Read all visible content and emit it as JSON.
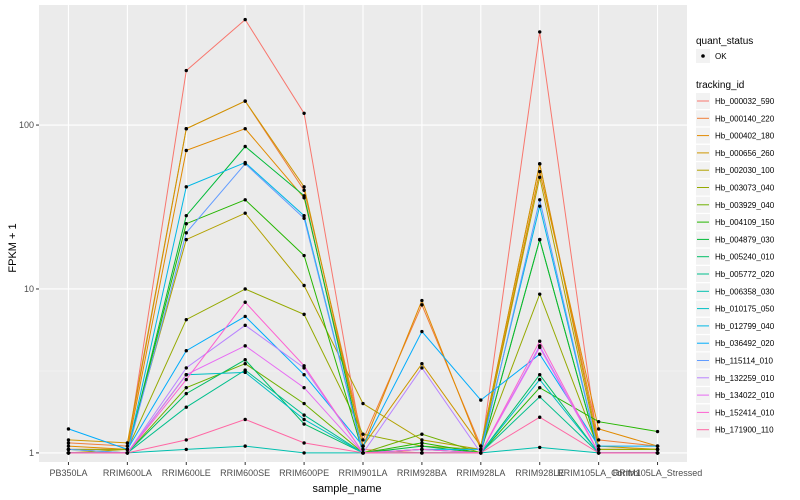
{
  "chart_data": {
    "type": "line",
    "xlabel": "sample_name",
    "ylabel": "FPKM + 1",
    "y_scale": "log10",
    "ylim": [
      0.88,
      540
    ],
    "y_ticks": [
      1,
      10,
      100
    ],
    "y_tick_labels": [
      "1",
      "10",
      "100"
    ],
    "grid": true,
    "categories": [
      "PB350LA",
      "RRIM600LA",
      "RRIM600LE",
      "RRIM600SE",
      "RRIM600PE",
      "RRIM901LA",
      "RRIM928BA",
      "RRIM928LA",
      "RRIM928LE",
      "RRIM105LA_Control",
      "RRIM105LA_Stressed"
    ],
    "legend_quant": {
      "title": "quant_status",
      "items": [
        "OK"
      ]
    },
    "legend_title": "tracking_id",
    "legend_position": "right",
    "series": [
      {
        "name": "Hb_000032_590",
        "color": "#F8766D",
        "values": [
          1.05,
          1.05,
          215,
          440,
          118,
          1.05,
          1.0,
          1.0,
          370,
          1.05,
          1.05
        ]
      },
      {
        "name": "Hb_000140_220",
        "color": "#EF7F3A",
        "values": [
          1.15,
          1.1,
          95,
          140,
          40,
          1.2,
          8.0,
          1.1,
          58,
          1.2,
          1.1
        ]
      },
      {
        "name": "Hb_000402_180",
        "color": "#E18A00",
        "values": [
          1.1,
          1.05,
          70,
          95,
          36,
          1.1,
          8.5,
          1.05,
          52,
          1.4,
          1.1
        ]
      },
      {
        "name": "Hb_000656_260",
        "color": "#CD9600",
        "values": [
          1.2,
          1.15,
          95,
          140,
          42,
          1.1,
          3.5,
          1.1,
          58,
          1.1,
          1.05
        ]
      },
      {
        "name": "Hb_002030_100",
        "color": "#B2A100",
        "values": [
          1.0,
          1.05,
          20,
          29,
          10.5,
          2.0,
          1.2,
          1.05,
          48,
          1.05,
          1.05
        ]
      },
      {
        "name": "Hb_003073_040",
        "color": "#95A900",
        "values": [
          1.05,
          1.05,
          6.5,
          10,
          7.0,
          1.3,
          1.1,
          1.05,
          9.3,
          1.05,
          1.05
        ]
      },
      {
        "name": "Hb_003929_040",
        "color": "#6FB000",
        "values": [
          1.0,
          1.0,
          2.5,
          3.5,
          2.0,
          1.0,
          1.3,
          1.0,
          20,
          1.0,
          1.0
        ]
      },
      {
        "name": "Hb_004109_150",
        "color": "#25B600",
        "values": [
          1.05,
          1.0,
          25,
          35,
          16,
          1.0,
          1.15,
          1.0,
          2.5,
          1.55,
          1.35
        ]
      },
      {
        "name": "Hb_004879_030",
        "color": "#00BA38",
        "values": [
          1.0,
          1.0,
          28,
          74,
          37,
          1.0,
          1.1,
          1.0,
          20,
          1.0,
          1.0
        ]
      },
      {
        "name": "Hb_005240_010",
        "color": "#00BD66",
        "values": [
          1.0,
          1.0,
          2.3,
          3.7,
          1.5,
          1.0,
          1.0,
          1.0,
          3.0,
          1.0,
          1.0
        ]
      },
      {
        "name": "Hb_005772_020",
        "color": "#00BF8C",
        "values": [
          1.0,
          1.0,
          1.9,
          3.2,
          1.7,
          1.0,
          1.0,
          1.0,
          2.2,
          1.0,
          1.0
        ]
      },
      {
        "name": "Hb_006358_030",
        "color": "#00C0AF",
        "values": [
          1.0,
          1.0,
          1.05,
          1.1,
          1.0,
          1.0,
          1.0,
          1.0,
          1.08,
          1.0,
          1.0
        ]
      },
      {
        "name": "Hb_010175_050",
        "color": "#00BFC4",
        "values": [
          1.0,
          1.0,
          3.0,
          3.1,
          1.6,
          1.0,
          1.05,
          1.0,
          2.8,
          1.0,
          1.0
        ]
      },
      {
        "name": "Hb_012799_040",
        "color": "#00B8E5",
        "values": [
          1.0,
          1.0,
          42,
          59,
          28,
          1.0,
          1.05,
          1.05,
          32,
          1.0,
          1.0
        ]
      },
      {
        "name": "Hb_036492_020",
        "color": "#00ACFC",
        "values": [
          1.4,
          1.05,
          4.2,
          6.8,
          3.0,
          1.1,
          5.5,
          2.1,
          4.0,
          1.1,
          1.1
        ]
      },
      {
        "name": "Hb_115114_010",
        "color": "#619CFF",
        "values": [
          1.05,
          1.0,
          22,
          58,
          27,
          1.0,
          1.05,
          1.0,
          35,
          1.0,
          1.0
        ]
      },
      {
        "name": "Hb_132259_010",
        "color": "#B983FF",
        "values": [
          1.0,
          1.0,
          3.3,
          6.0,
          3.3,
          1.0,
          3.3,
          1.0,
          4.5,
          1.0,
          1.0
        ]
      },
      {
        "name": "Hb_134022_010",
        "color": "#E76BF3",
        "values": [
          1.0,
          1.0,
          3.0,
          4.5,
          2.5,
          1.0,
          1.0,
          1.0,
          4.4,
          1.0,
          1.0
        ]
      },
      {
        "name": "Hb_152414_010",
        "color": "#FD61D1",
        "values": [
          1.0,
          1.0,
          2.8,
          8.3,
          3.4,
          1.0,
          1.05,
          1.0,
          4.8,
          1.0,
          1.0
        ]
      },
      {
        "name": "Hb_171900_110",
        "color": "#FF67A4",
        "values": [
          1.0,
          1.0,
          1.2,
          1.6,
          1.15,
          1.0,
          1.0,
          1.0,
          1.65,
          1.0,
          1.0
        ]
      }
    ]
  }
}
